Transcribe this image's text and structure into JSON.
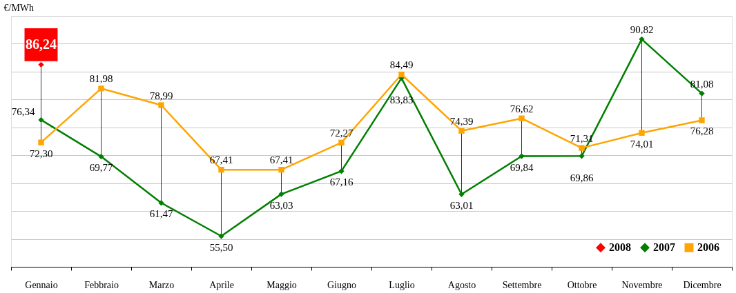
{
  "chart_data": {
    "type": "line",
    "ylabel": "€/MWh",
    "categories": [
      "Gennaio",
      "Febbraio",
      "Marzo",
      "Aprile",
      "Maggio",
      "Giugno",
      "Luglio",
      "Agosto",
      "Settembre",
      "Ottobre",
      "Novembre",
      "Dicembre"
    ],
    "series": [
      {
        "name": "2008",
        "color": "#ff0000",
        "marker": "diamond",
        "values": [
          86.24,
          null,
          null,
          null,
          null,
          null,
          null,
          null,
          null,
          null,
          null,
          null
        ],
        "value_labels": [
          "86,24",
          null,
          null,
          null,
          null,
          null,
          null,
          null,
          null,
          null,
          null,
          null
        ]
      },
      {
        "name": "2007",
        "color": "#007f00",
        "marker": "diamond",
        "values": [
          76.34,
          69.77,
          61.47,
          55.5,
          63.03,
          67.16,
          83.83,
          63.01,
          69.84,
          69.86,
          90.82,
          81.08
        ],
        "value_labels": [
          "76,34",
          "69,77",
          "61,47",
          "55,50",
          "63,03",
          "67,16",
          "83,83",
          "63,01",
          "69,84",
          "69,86",
          "90,82",
          "81,08"
        ]
      },
      {
        "name": "2006",
        "color": "#ffa500",
        "marker": "square",
        "values": [
          72.3,
          81.98,
          78.99,
          67.41,
          67.41,
          72.27,
          84.49,
          74.39,
          76.62,
          71.31,
          74.01,
          76.28
        ],
        "value_labels": [
          "72,30",
          "81,98",
          "78,99",
          "67,41",
          "67,41",
          "72,27",
          "84,49",
          "74,39",
          "76,62",
          "71,31",
          "74,01",
          "76,28"
        ]
      }
    ],
    "ylim": [
      50,
      95
    ],
    "yticks": [
      {
        "value": 55,
        "label": null
      },
      {
        "value": 60,
        "label": null
      },
      {
        "value": 65,
        "label": null
      },
      {
        "value": 70,
        "label": null
      },
      {
        "value": 75,
        "label": null
      },
      {
        "value": 80,
        "label": null
      },
      {
        "value": 85,
        "label": null
      },
      {
        "value": 90,
        "label": null
      },
      {
        "value": 95,
        "label": null
      }
    ],
    "tick_labels": "x",
    "grid": "y",
    "legend": "bottom right",
    "line_style": "solid"
  }
}
